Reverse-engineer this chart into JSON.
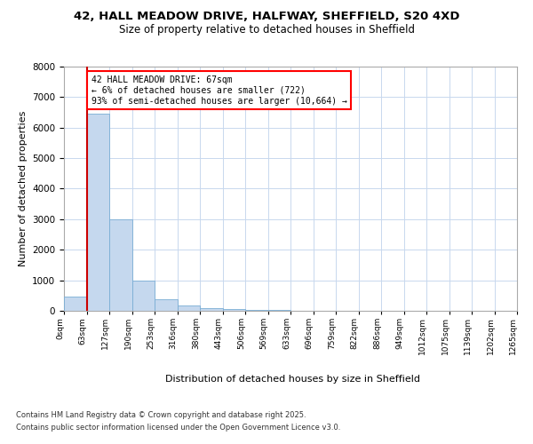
{
  "title_line1": "42, HALL MEADOW DRIVE, HALFWAY, SHEFFIELD, S20 4XD",
  "title_line2": "Size of property relative to detached houses in Sheffield",
  "xlabel": "Distribution of detached houses by size in Sheffield",
  "ylabel": "Number of detached properties",
  "annotation_line1": "42 HALL MEADOW DRIVE: 67sqm",
  "annotation_line2": "← 6% of detached houses are smaller (722)",
  "annotation_line3": "93% of semi-detached houses are larger (10,664) →",
  "bar_values": [
    480,
    6450,
    3000,
    1000,
    380,
    170,
    90,
    50,
    30,
    18,
    12,
    8,
    6,
    4,
    3,
    2,
    2,
    1,
    1,
    1
  ],
  "bin_labels": [
    "0sqm",
    "63sqm",
    "127sqm",
    "190sqm",
    "253sqm",
    "316sqm",
    "380sqm",
    "443sqm",
    "506sqm",
    "569sqm",
    "633sqm",
    "696sqm",
    "759sqm",
    "822sqm",
    "886sqm",
    "949sqm",
    "1012sqm",
    "1075sqm",
    "1139sqm",
    "1202sqm",
    "1265sqm"
  ],
  "bar_color": "#c5d8ee",
  "bar_edge_color": "#7aadd4",
  "property_line_color": "#cc0000",
  "background_color": "#ffffff",
  "grid_color": "#c8d8ee",
  "ylim": [
    0,
    8000
  ],
  "yticks": [
    0,
    1000,
    2000,
    3000,
    4000,
    5000,
    6000,
    7000,
    8000
  ],
  "footnote_line1": "Contains HM Land Registry data © Crown copyright and database right 2025.",
  "footnote_line2": "Contains public sector information licensed under the Open Government Licence v3.0."
}
